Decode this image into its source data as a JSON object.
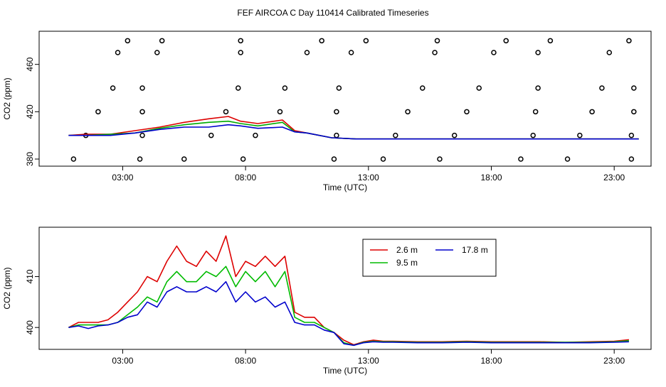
{
  "figure_title": "FEF AIRCOA C  Day 110414  Calibrated Timeseries",
  "chart_data": [
    {
      "type": "line",
      "title": "FEF AIRCOA C  Day 110414  Calibrated Timeseries",
      "xlabel": "Time (UTC)",
      "ylabel": "CO2 (ppm)",
      "xlim": [
        -0.4,
        24.5
      ],
      "ylim": [
        374,
        488
      ],
      "xticks": [
        3,
        8,
        13,
        18,
        23
      ],
      "xtick_labels": [
        "03:00",
        "08:00",
        "13:00",
        "18:00",
        "23:00"
      ],
      "yticks": [
        380,
        420,
        460
      ],
      "ytick_labels": [
        "380",
        "420",
        "460"
      ],
      "series": [
        {
          "name": "2.6 m",
          "color": "#dd0000",
          "x": [
            0.8,
            1.5,
            2.5,
            3.5,
            4.5,
            5.5,
            6.5,
            7.3,
            7.8,
            8.5,
            9.5,
            10.0,
            10.5,
            11.5,
            12.5,
            13.0,
            14.0,
            16.0,
            18.0,
            20.0,
            22.0,
            24.0
          ],
          "y": [
            400,
            401,
            401,
            404,
            407,
            411,
            414,
            416,
            412,
            410,
            413,
            404,
            402,
            398,
            397,
            397,
            397,
            397,
            397,
            397,
            397,
            397
          ]
        },
        {
          "name": "9.5 m",
          "color": "#00aa00",
          "x": [
            0.8,
            1.5,
            2.5,
            3.5,
            4.5,
            5.5,
            6.5,
            7.3,
            7.8,
            8.5,
            9.5,
            10.0,
            10.5,
            11.5,
            12.5,
            13.0,
            14.0,
            16.0,
            18.0,
            20.0,
            22.0,
            24.0
          ],
          "y": [
            400,
            400,
            401,
            402,
            406,
            409,
            411,
            412,
            410,
            408,
            411,
            403,
            402,
            398,
            397,
            397,
            397,
            397,
            397,
            397,
            397,
            397
          ]
        },
        {
          "name": "17.8 m",
          "color": "#0000cc",
          "x": [
            0.8,
            1.5,
            2.5,
            3.5,
            4.5,
            5.5,
            6.5,
            7.3,
            7.8,
            8.5,
            9.5,
            10.0,
            10.5,
            11.5,
            12.5,
            13.0,
            14.0,
            16.0,
            18.0,
            20.0,
            22.0,
            24.0
          ],
          "y": [
            400,
            400,
            400,
            402,
            405,
            407,
            407,
            409,
            408,
            406,
            407,
            403,
            402,
            398,
            397,
            397,
            397,
            397,
            397,
            397,
            397,
            397
          ]
        }
      ],
      "points": {
        "x": [
          1.0,
          1.5,
          2.0,
          2.6,
          2.8,
          3.2,
          3.7,
          3.8,
          3.8,
          3.8,
          4.4,
          4.6,
          5.5,
          6.6,
          7.2,
          7.7,
          7.8,
          7.8,
          7.9,
          8.4,
          9.4,
          9.6,
          10.5,
          11.1,
          11.6,
          11.7,
          11.7,
          11.8,
          12.3,
          12.9,
          13.6,
          14.1,
          14.6,
          15.2,
          15.7,
          15.8,
          15.9,
          16.5,
          17.0,
          17.5,
          18.1,
          18.6,
          19.2,
          19.7,
          19.8,
          19.9,
          19.9,
          20.4,
          21.1,
          21.6,
          22.1,
          22.5,
          22.8,
          23.6,
          23.7,
          23.7,
          23.8,
          23.8
        ]
      }
    },
    {
      "type": "line",
      "xlabel": "Time (UTC)",
      "ylabel": "CO2 (ppm)",
      "xlim": [
        -0.4,
        24.5
      ],
      "ylim": [
        395.7,
        419.7
      ],
      "xticks": [
        3,
        8,
        13,
        18,
        23
      ],
      "xtick_labels": [
        "03:00",
        "08:00",
        "13:00",
        "18:00",
        "23:00"
      ],
      "yticks": [
        400,
        410
      ],
      "ytick_labels": [
        "400",
        "410"
      ],
      "legend": "top-center",
      "series": [
        {
          "name": "2.6 m",
          "color": "#dd0000",
          "x": [
            0.8,
            1.2,
            1.6,
            2.0,
            2.4,
            2.8,
            3.2,
            3.6,
            4.0,
            4.4,
            4.8,
            5.2,
            5.6,
            6.0,
            6.4,
            6.8,
            7.2,
            7.6,
            8.0,
            8.4,
            8.8,
            9.2,
            9.6,
            10.0,
            10.4,
            10.8,
            11.2,
            11.6,
            12.0,
            12.4,
            12.8,
            13.2,
            13.6,
            14.0,
            15.0,
            16.0,
            17.0,
            18.0,
            19.0,
            20.0,
            21.0,
            22.0,
            23.0,
            23.6
          ],
          "y": [
            400,
            401,
            401,
            401,
            401.5,
            403,
            405,
            407,
            410,
            409,
            413,
            416,
            413,
            412,
            415,
            413,
            418,
            410,
            413,
            412,
            414,
            412,
            414,
            403,
            402,
            402,
            400,
            399,
            397.5,
            396.6,
            397.2,
            397.5,
            397.3,
            397.3,
            397.2,
            397.2,
            397.3,
            397.2,
            397.2,
            397.2,
            397.1,
            397.2,
            397.3,
            397.6
          ]
        },
        {
          "name": "9.5 m",
          "color": "#00bb00",
          "x": [
            0.8,
            1.2,
            1.6,
            2.0,
            2.4,
            2.8,
            3.2,
            3.6,
            4.0,
            4.4,
            4.8,
            5.2,
            5.6,
            6.0,
            6.4,
            6.8,
            7.2,
            7.6,
            8.0,
            8.4,
            8.8,
            9.2,
            9.6,
            10.0,
            10.4,
            10.8,
            11.2,
            11.6,
            12.0,
            12.4,
            12.8,
            13.2,
            13.6,
            14.0,
            15.0,
            16.0,
            17.0,
            18.0,
            19.0,
            20.0,
            21.0,
            22.0,
            23.0,
            23.6
          ],
          "y": [
            400,
            400.5,
            400.5,
            400.5,
            400.5,
            401,
            402.5,
            404,
            406,
            405,
            409,
            411,
            409,
            409,
            411,
            410,
            412,
            408,
            411,
            409,
            411,
            408,
            411,
            402,
            401,
            401,
            400,
            399,
            397,
            396.5,
            397.1,
            397.3,
            397.2,
            397.2,
            397.1,
            397.1,
            397.2,
            397.1,
            397.1,
            397.1,
            397.1,
            397.1,
            397.2,
            397.4
          ]
        },
        {
          "name": "17.8 m",
          "color": "#0000cc",
          "x": [
            0.8,
            1.2,
            1.6,
            2.0,
            2.4,
            2.8,
            3.2,
            3.6,
            4.0,
            4.4,
            4.8,
            5.2,
            5.6,
            6.0,
            6.4,
            6.8,
            7.2,
            7.6,
            8.0,
            8.4,
            8.8,
            9.2,
            9.6,
            10.0,
            10.4,
            10.8,
            11.2,
            11.6,
            12.0,
            12.4,
            12.8,
            13.2,
            13.6,
            14.0,
            15.0,
            16.0,
            17.0,
            18.0,
            19.0,
            20.0,
            21.0,
            22.0,
            23.0,
            23.6
          ],
          "y": [
            400,
            400.3,
            399.8,
            400.3,
            400.5,
            401,
            402,
            402.5,
            405,
            404,
            407,
            408,
            407,
            407,
            408,
            407,
            409,
            405,
            407,
            405,
            406,
            404,
            405,
            401,
            400.5,
            400.5,
            399.5,
            399,
            396.8,
            396.5,
            397,
            397.2,
            397.1,
            397.1,
            397,
            397,
            397.1,
            397,
            397,
            397,
            397,
            397,
            397.1,
            397.2
          ]
        }
      ]
    }
  ]
}
